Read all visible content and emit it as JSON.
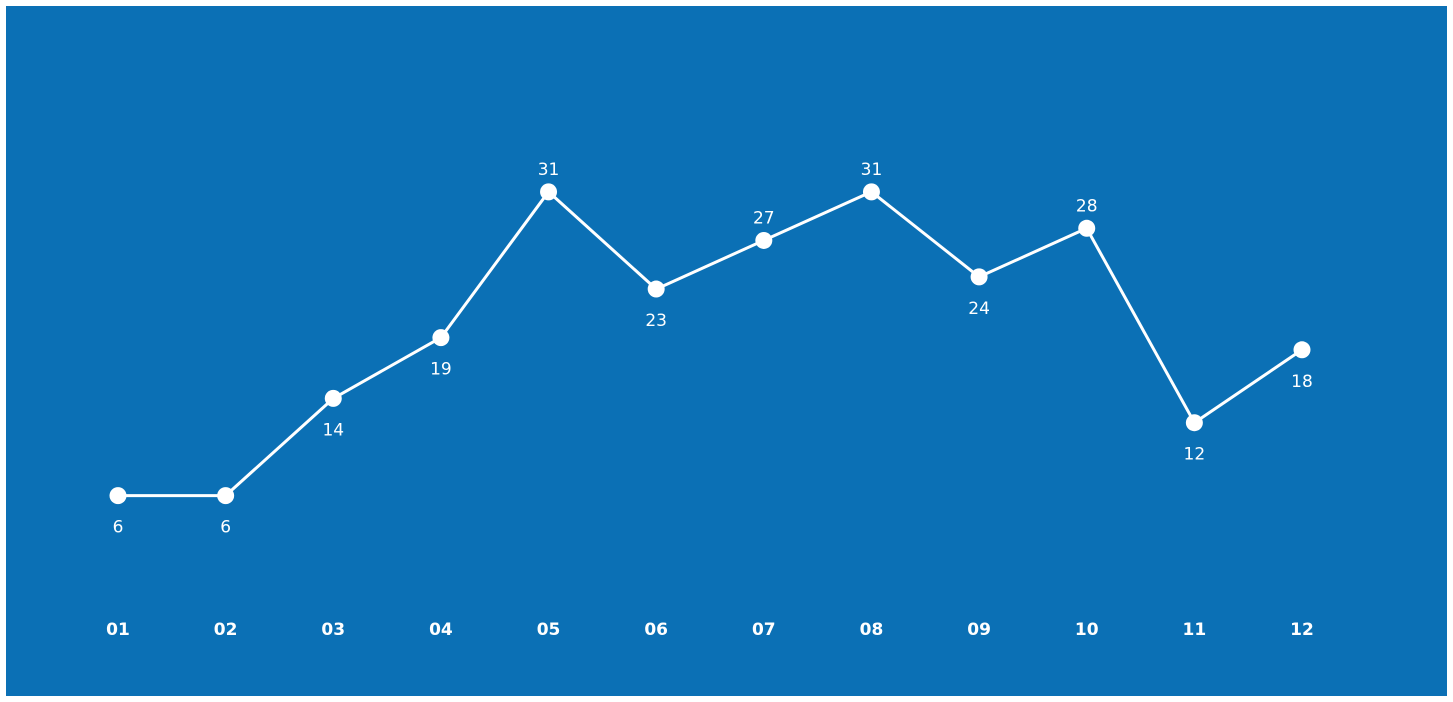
{
  "colors": {
    "background": "#0b70b5",
    "line": "#ffffff",
    "markers": "#ffffff",
    "text": "#ffffff"
  },
  "chart_data": {
    "type": "line",
    "title": "",
    "xlabel": "",
    "ylabel": "",
    "categories": [
      "01",
      "02",
      "03",
      "04",
      "05",
      "06",
      "07",
      "08",
      "09",
      "10",
      "11",
      "12"
    ],
    "series": [
      {
        "values": [
          6,
          6,
          14,
          19,
          31,
          23,
          27,
          31,
          24,
          28,
          12,
          18
        ]
      }
    ],
    "label_position": [
      "below",
      "below",
      "below",
      "below",
      "above",
      "below",
      "above",
      "above",
      "below",
      "above",
      "below",
      "below"
    ],
    "ylim": [
      0,
      40
    ],
    "grid": false,
    "legend": "none",
    "y_axis_visible": false,
    "markers": true,
    "data_labels": true
  }
}
